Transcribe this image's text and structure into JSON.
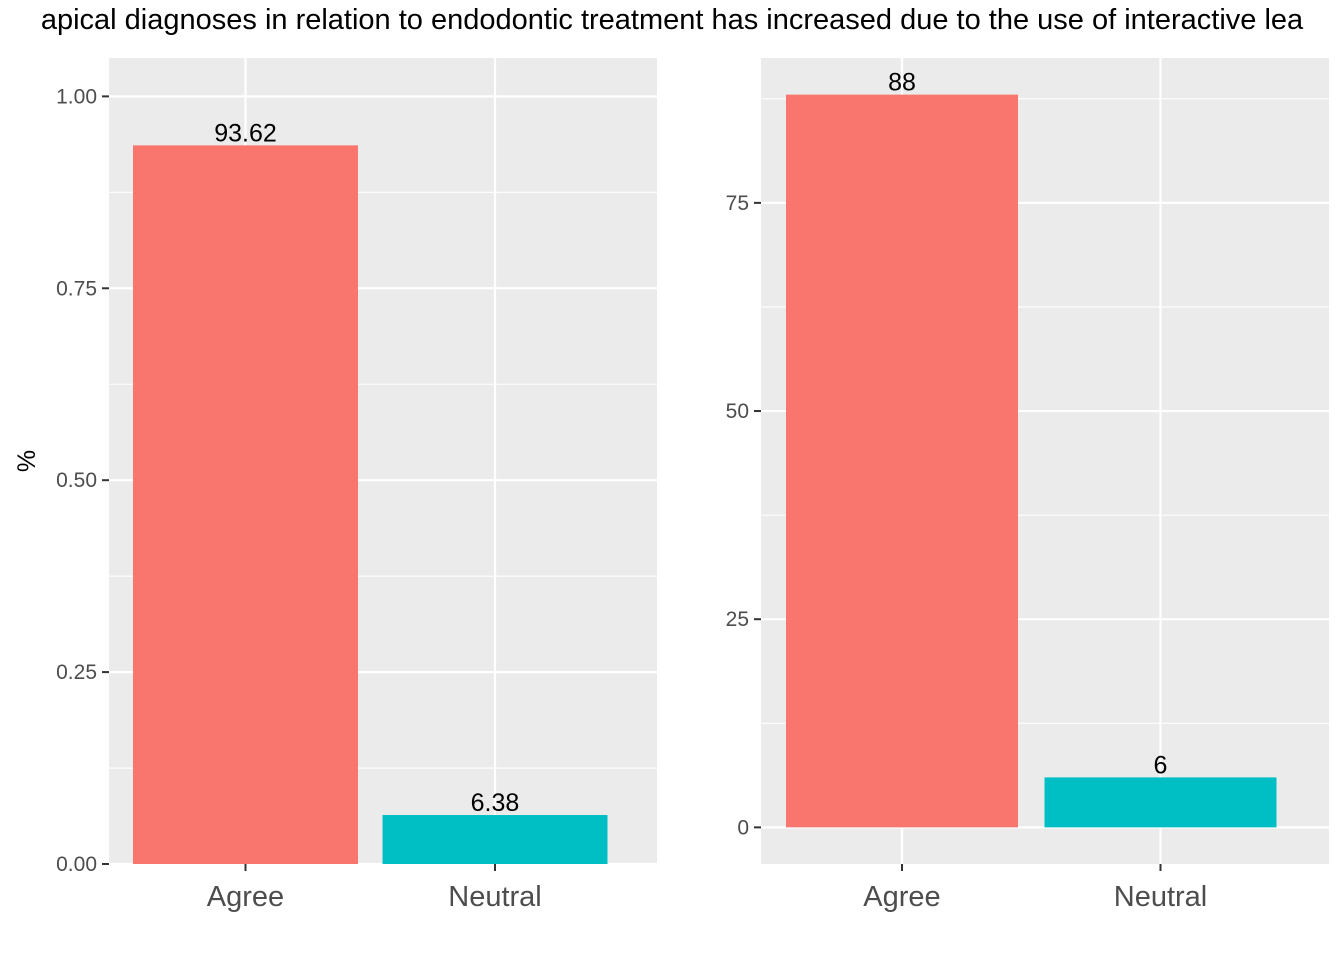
{
  "title": "apical diagnoses in relation to endodontic treatment has increased due to the use of interactive lea",
  "chart_data": [
    {
      "type": "bar",
      "categories": [
        "Agree",
        "Neutral"
      ],
      "values": [
        0.9362,
        0.0638
      ],
      "data_labels": [
        "93.62",
        "6.38"
      ],
      "colors": [
        "#F8766D",
        "#00BFC4"
      ],
      "ylabel": "%",
      "xlabel": "",
      "ylim": [
        0,
        1.05
      ],
      "yticks": [
        0,
        0.25,
        0.5,
        0.75,
        1.0
      ],
      "ytick_labels": [
        "0.00",
        "0.25",
        "0.50",
        "0.75",
        "1.00"
      ],
      "grid": true
    },
    {
      "type": "bar",
      "categories": [
        "Agree",
        "Neutral"
      ],
      "values": [
        88,
        6
      ],
      "data_labels": [
        "88",
        "6"
      ],
      "colors": [
        "#F8766D",
        "#00BFC4"
      ],
      "ylabel": "",
      "xlabel": "",
      "ylim": [
        -4.4,
        92.4
      ],
      "yticks": [
        0,
        25,
        50,
        75
      ],
      "ytick_labels": [
        "0",
        "25",
        "50",
        "75"
      ],
      "grid": true
    }
  ]
}
